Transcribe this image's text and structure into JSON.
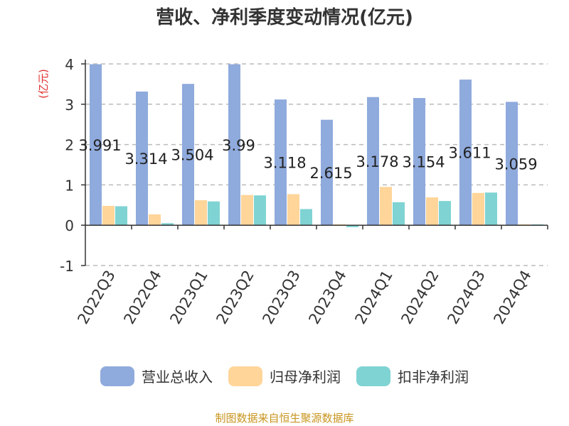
{
  "chart_data": {
    "type": "bar",
    "title": "营收、净利季度变动情况(亿元)",
    "ylabel": "(亿元)",
    "xlabel": "",
    "ylim": [
      -1,
      4
    ],
    "yticks": [
      -1,
      0,
      1,
      2,
      3,
      4
    ],
    "grid": true,
    "legend_position": "bottom",
    "categories": [
      "2022Q3",
      "2022Q4",
      "2023Q1",
      "2023Q2",
      "2023Q3",
      "2023Q4",
      "2024Q1",
      "2024Q2",
      "2024Q3",
      "2024Q4"
    ],
    "series": [
      {
        "name": "营业总收入",
        "color": "#8faadc",
        "values": [
          3.991,
          3.314,
          3.504,
          3.99,
          3.118,
          2.615,
          3.178,
          3.154,
          3.611,
          3.059
        ],
        "labels": [
          "3.991",
          "3.314",
          "3.504",
          "3.99",
          "3.118",
          "2.615",
          "3.178",
          "3.154",
          "3.611",
          "3.059"
        ]
      },
      {
        "name": "归母净利润",
        "color": "#ffd59a",
        "values": [
          0.48,
          0.27,
          0.62,
          0.75,
          0.77,
          0.02,
          0.95,
          0.69,
          0.8,
          0.02
        ]
      },
      {
        "name": "扣非净利润",
        "color": "#7fd3d3",
        "values": [
          0.47,
          0.05,
          0.59,
          0.74,
          0.4,
          -0.05,
          0.57,
          0.6,
          0.81,
          0.02
        ]
      }
    ]
  },
  "source": "制图数据来自恒生聚源数据库"
}
